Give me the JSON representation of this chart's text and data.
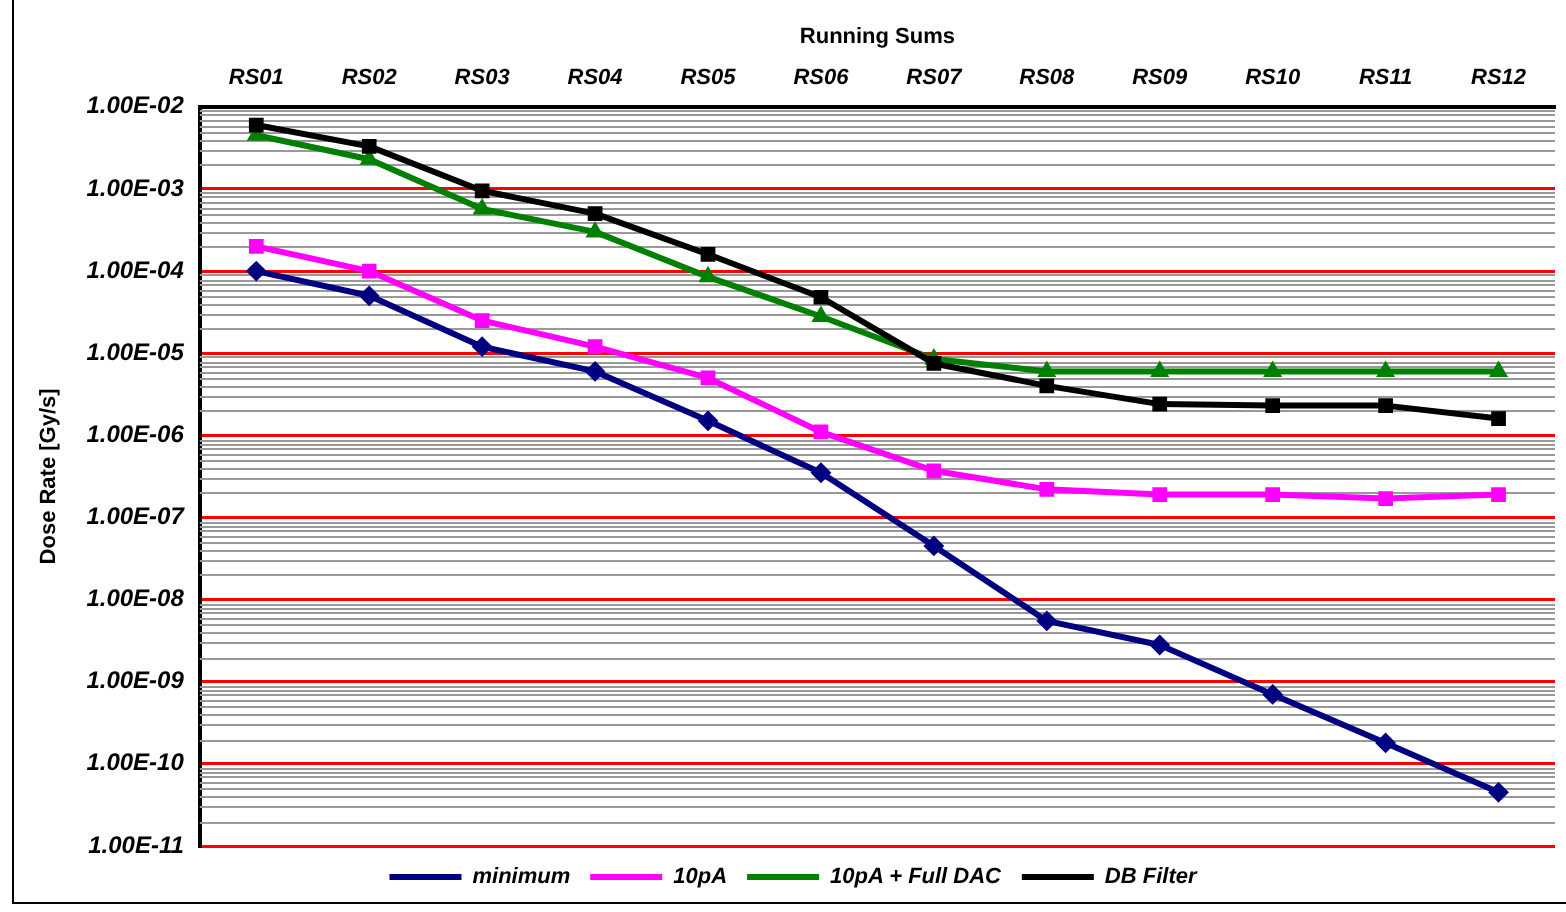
{
  "chart_data": {
    "type": "line",
    "xlabel": "Running Sums",
    "ylabel": "Dose Rate [Gy/s]",
    "categories": [
      "RS01",
      "RS02",
      "RS03",
      "RS04",
      "RS05",
      "RS06",
      "RS07",
      "RS08",
      "RS09",
      "RS10",
      "RS11",
      "RS12"
    ],
    "series": [
      {
        "name": "minimum",
        "color": "#000080",
        "marker": "diamond",
        "values": [
          0.0001,
          5e-05,
          1.2e-05,
          6e-06,
          1.5e-06,
          3.5e-07,
          4.5e-08,
          5.5e-09,
          2.8e-09,
          7e-10,
          1.8e-10,
          4.5e-11
        ]
      },
      {
        "name": "10pA",
        "color": "#ff00ff",
        "marker": "square",
        "values": [
          0.0002,
          0.0001,
          2.5e-05,
          1.2e-05,
          5e-06,
          1.1e-06,
          3.7e-07,
          2.2e-07,
          1.9e-07,
          1.9e-07,
          1.7e-07,
          1.9e-07
        ]
      },
      {
        "name": "10pA + Full DAC",
        "color": "#008000",
        "marker": "triangle",
        "values": [
          0.0045,
          0.0023,
          0.00057,
          0.0003,
          8.5e-05,
          2.8e-05,
          8.5e-06,
          6e-06,
          6e-06,
          6e-06,
          6e-06,
          6e-06
        ]
      },
      {
        "name": "DB Filter",
        "color": "#000000",
        "marker": "square",
        "values": [
          0.006,
          0.0033,
          0.00095,
          0.0005,
          0.00016,
          4.8e-05,
          7.5e-06,
          4e-06,
          2.4e-06,
          2.3e-06,
          2.3e-06,
          1.6e-06
        ]
      }
    ],
    "log": "y",
    "ylim": [
      1e-11,
      0.01
    ],
    "yticks": [
      {
        "value": 1e-11,
        "label": "1.00E-11"
      },
      {
        "value": 1e-10,
        "label": "1.00E-10"
      },
      {
        "value": 1e-09,
        "label": "1.00E-09"
      },
      {
        "value": 1e-08,
        "label": "1.00E-08"
      },
      {
        "value": 1e-07,
        "label": "1.00E-07"
      },
      {
        "value": 1e-06,
        "label": "1.00E-06"
      },
      {
        "value": 1e-05,
        "label": "1.00E-05"
      },
      {
        "value": 0.0001,
        "label": "1.00E-04"
      },
      {
        "value": 0.001,
        "label": "1.00E-03"
      },
      {
        "value": 0.01,
        "label": "1.00E-02"
      }
    ],
    "grid": "y",
    "legend": "bottom",
    "line_style": "solid"
  }
}
